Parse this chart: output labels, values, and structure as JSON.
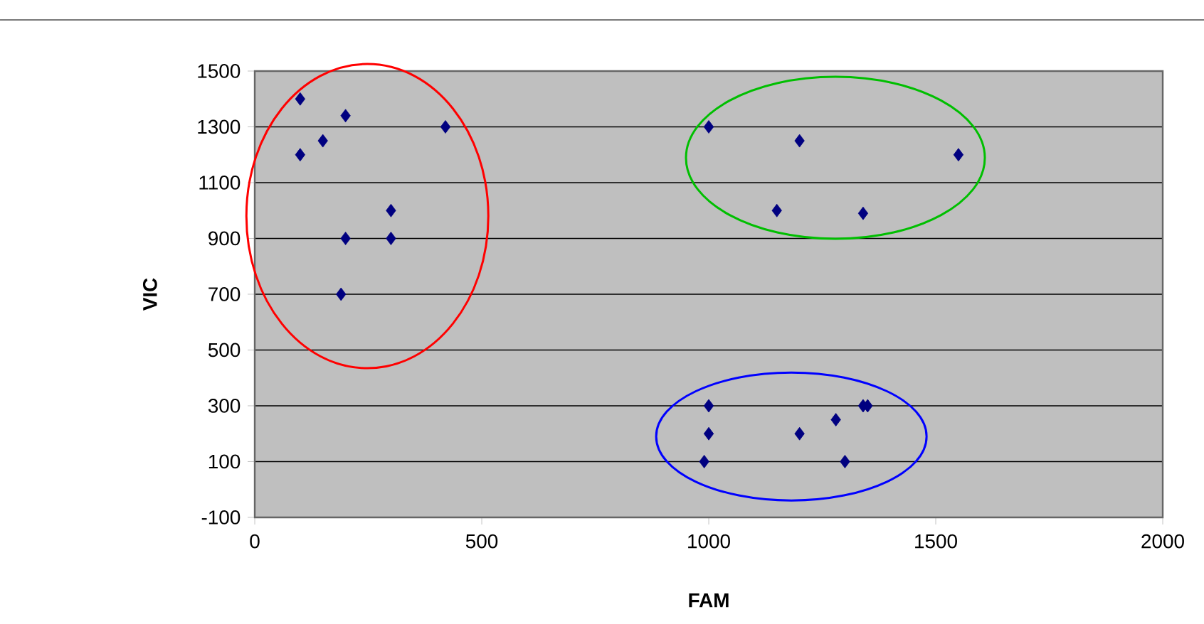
{
  "chart_data": {
    "type": "scatter",
    "xlabel": "FAM",
    "ylabel": "VIC",
    "series": [
      {
        "color": "#000080",
        "x": [
          100,
          200,
          150,
          100,
          420,
          300,
          200,
          300,
          190,
          1000,
          1200,
          1550,
          1150,
          1340,
          1000,
          1000,
          990,
          1200,
          1280,
          1340,
          1350,
          1300
        ],
        "values": [
          1400,
          1340,
          1250,
          1200,
          1300,
          1000,
          900,
          900,
          700,
          1300,
          1250,
          1200,
          1000,
          990,
          300,
          200,
          100,
          200,
          250,
          300,
          300,
          100
        ]
      }
    ],
    "xlim": [
      0,
      2000
    ],
    "ylim": [
      -100,
      1500
    ],
    "xticks": [
      0,
      500,
      1000,
      1500,
      2000
    ],
    "yticks": [
      -100,
      100,
      300,
      500,
      700,
      900,
      1100,
      1300,
      1500
    ],
    "grid": "y",
    "marker": "diamond"
  }
}
